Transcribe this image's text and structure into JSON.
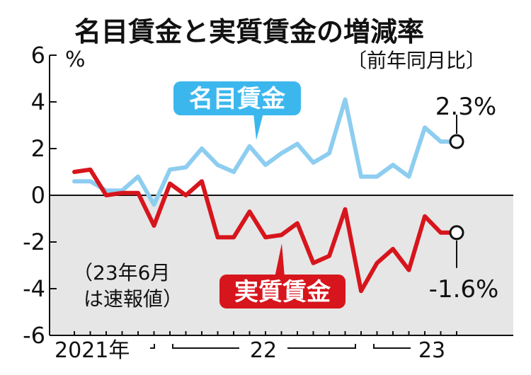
{
  "chart_data": {
    "type": "line",
    "title": "名目賃金と実質賃金の増減率",
    "subtitle": "〔前年同月比〕",
    "ylabel": "%",
    "ylim": [
      -6,
      6
    ],
    "yticks": [
      6,
      4,
      2,
      0,
      -2,
      -4,
      -6
    ],
    "ytick_labels": [
      "6",
      "4",
      "2",
      "0",
      "-2",
      "-4",
      "-6"
    ],
    "x": [
      "2021-06",
      "2021-07",
      "2021-08",
      "2021-09",
      "2021-10",
      "2021-11",
      "2021-12",
      "2022-01",
      "2022-02",
      "2022-03",
      "2022-04",
      "2022-05",
      "2022-06",
      "2022-07",
      "2022-08",
      "2022-09",
      "2022-10",
      "2022-11",
      "2022-12",
      "2023-01",
      "2023-02",
      "2023-03",
      "2023-04",
      "2023-05",
      "2023-06"
    ],
    "year_labels": [
      "2021年",
      "22",
      "23"
    ],
    "series": [
      {
        "name": "名目賃金",
        "color": "#8dcdf0",
        "values": [
          0.6,
          0.6,
          0.2,
          0.2,
          0.8,
          -0.4,
          1.1,
          1.2,
          2.0,
          1.3,
          1.0,
          2.1,
          1.3,
          1.8,
          2.2,
          1.4,
          1.8,
          4.1,
          0.8,
          0.8,
          1.3,
          0.8,
          2.9,
          2.3,
          2.3
        ],
        "end_label": "2.3%"
      },
      {
        "name": "実質賃金",
        "color": "#d7151c",
        "values": [
          1.0,
          1.1,
          0.0,
          0.1,
          0.1,
          -1.3,
          0.5,
          0.0,
          0.6,
          -1.8,
          -1.8,
          -0.7,
          -1.8,
          -1.7,
          -1.2,
          -2.9,
          -2.6,
          -0.6,
          -4.1,
          -2.9,
          -2.3,
          -3.2,
          -0.9,
          -1.6,
          -1.6
        ],
        "end_label": "-1.6%"
      }
    ],
    "annotation": {
      "line1": "（23年6月",
      "line2": "は速報値）"
    },
    "negative_region_fill": "#e6e6e6",
    "grid": false
  }
}
